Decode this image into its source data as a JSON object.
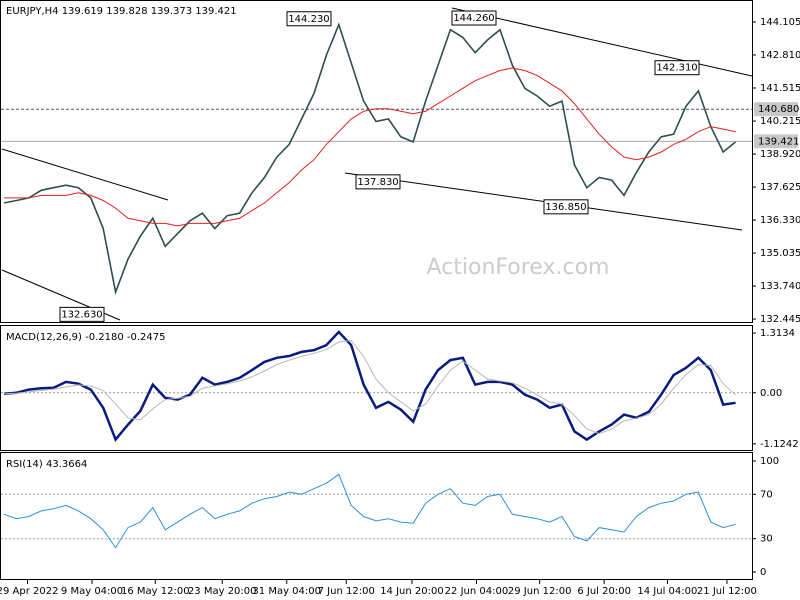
{
  "chart_data": [
    {
      "type": "line",
      "title": "EURJPY,H4  139.619 139.828 139.373 139.421",
      "watermark": "ActionForex.com",
      "x": [
        0,
        1,
        2,
        3,
        4,
        5,
        6,
        7,
        8,
        9,
        10,
        11,
        12,
        13,
        14,
        15,
        16,
        17,
        18,
        19,
        20,
        21,
        22,
        23,
        24,
        25,
        26,
        27,
        28,
        29,
        30,
        31,
        32,
        33,
        34,
        35,
        36,
        37,
        38,
        39,
        40,
        41,
        42,
        43,
        44,
        45,
        46,
        47,
        48,
        49,
        50,
        51,
        52,
        53,
        54,
        55,
        56,
        57,
        58,
        59
      ],
      "xlim": [
        0,
        60
      ],
      "ylim": [
        132.33,
        144.81
      ],
      "grid": false,
      "yticks": [
        144.105,
        {
          "value": 142.81,
          "label": "142.810"
        },
        141.515,
        140.215,
        {
          "value": 138.92,
          "label": "138.920"
        },
        137.625,
        {
          "value": 136.33,
          "label": "136.330"
        },
        135.035,
        {
          "value": 133.74,
          "label": "133.740"
        },
        132.445
      ],
      "series": [
        {
          "name": "EURJPY",
          "color": "#2f4f4f",
          "values": [
            137.0,
            137.1,
            137.2,
            137.5,
            137.6,
            137.7,
            137.6,
            137.2,
            136.0,
            133.5,
            134.8,
            135.7,
            136.4,
            135.3,
            135.8,
            136.3,
            136.6,
            136.0,
            136.5,
            136.6,
            137.4,
            138.0,
            138.8,
            139.3,
            140.3,
            141.3,
            142.8,
            144.0,
            142.5,
            141.0,
            140.2,
            140.3,
            139.6,
            139.4,
            141.0,
            142.4,
            143.8,
            143.5,
            142.9,
            143.4,
            143.8,
            142.4,
            141.5,
            141.2,
            140.8,
            141.0,
            138.5,
            137.6,
            138.0,
            137.9,
            137.3,
            138.2,
            139.0,
            139.6,
            139.7,
            140.8,
            141.4,
            140.0,
            139.0,
            139.4
          ]
        },
        {
          "color": "#e02020",
          "values": [
            137.2,
            137.2,
            137.2,
            137.3,
            137.3,
            137.3,
            137.4,
            137.3,
            137.1,
            136.8,
            136.4,
            136.3,
            136.2,
            136.2,
            136.1,
            136.2,
            136.2,
            136.2,
            136.3,
            136.4,
            136.7,
            137.0,
            137.4,
            137.8,
            138.3,
            138.7,
            139.3,
            139.8,
            140.3,
            140.6,
            140.7,
            140.7,
            140.6,
            140.5,
            140.6,
            140.9,
            141.2,
            141.5,
            141.8,
            142.0,
            142.2,
            142.3,
            142.2,
            142.0,
            141.7,
            141.4,
            140.9,
            140.3,
            139.7,
            139.2,
            138.8,
            138.7,
            138.8,
            139.0,
            139.3,
            139.5,
            139.8,
            140.0,
            139.9,
            139.8
          ]
        }
      ],
      "annotations": [
        {
          "value": 144.23,
          "label": "144.230"
        },
        {
          "value": 144.26,
          "label": "144.260"
        },
        {
          "value": 142.31,
          "label": "142.310"
        },
        {
          "value": 137.83,
          "label": "137.830"
        },
        {
          "value": 136.85,
          "label": "136.850"
        },
        {
          "value": 132.63,
          "label": "132.630"
        }
      ],
      "level": {
        "value": 140.68,
        "label": "140.680"
      },
      "price_line": {
        "value": 139.421,
        "label": "139.421"
      }
    },
    {
      "type": "line",
      "title": "MACD(12,26,9) -0.2180 -0.2475",
      "x": [
        0,
        1,
        2,
        3,
        4,
        5,
        6,
        7,
        8,
        9,
        10,
        11,
        12,
        13,
        14,
        15,
        16,
        17,
        18,
        19,
        20,
        21,
        22,
        23,
        24,
        25,
        26,
        27,
        28,
        29,
        30,
        31,
        32,
        33,
        34,
        35,
        36,
        37,
        38,
        39,
        40,
        41,
        42,
        43,
        44,
        45,
        46,
        47,
        48,
        49,
        50,
        51,
        52,
        53,
        54,
        55,
        56,
        57,
        58,
        59
      ],
      "xlim": [
        0,
        60
      ],
      "ylim": [
        -1.26,
        1.47
      ],
      "grid": true,
      "yticks": [
        1.3134,
        {
          "value": 0,
          "label": "0.00"
        },
        -1.1242
      ],
      "series": [
        {
          "color": "#0b1a7e",
          "values": [
            -0.02,
            0,
            0.07,
            0.1,
            0.11,
            0.24,
            0.2,
            0.07,
            -0.33,
            -1.03,
            -0.7,
            -0.4,
            0.18,
            -0.11,
            -0.15,
            -0.04,
            0.33,
            0.18,
            0.24,
            0.33,
            0.5,
            0.68,
            0.77,
            0.81,
            0.9,
            0.94,
            1.05,
            1.34,
            1.05,
            0.18,
            -0.33,
            -0.2,
            -0.37,
            -0.64,
            0.07,
            0.5,
            0.72,
            0.77,
            0.18,
            0.24,
            0.24,
            0.18,
            -0.04,
            -0.15,
            -0.33,
            -0.26,
            -0.85,
            -1.03,
            -0.85,
            -0.7,
            -0.48,
            -0.55,
            -0.42,
            -0.04,
            0.39,
            0.55,
            0.77,
            0.5,
            -0.26,
            -0.22
          ]
        },
        {
          "color": "#b8b8b8",
          "values": [
            -0.02,
            -0.01,
            0.02,
            0.05,
            0.08,
            0.13,
            0.17,
            0.15,
            0.05,
            -0.25,
            -0.55,
            -0.6,
            -0.35,
            -0.15,
            -0.12,
            -0.08,
            0.1,
            0.15,
            0.2,
            0.26,
            0.35,
            0.48,
            0.62,
            0.72,
            0.8,
            0.87,
            0.95,
            1.12,
            1.15,
            0.8,
            0.3,
            0,
            -0.2,
            -0.4,
            -0.25,
            0.15,
            0.5,
            0.7,
            0.5,
            0.3,
            0.26,
            0.22,
            0.1,
            -0.05,
            -0.2,
            -0.25,
            -0.5,
            -0.8,
            -0.9,
            -0.8,
            -0.62,
            -0.56,
            -0.48,
            -0.25,
            0.1,
            0.4,
            0.62,
            0.6,
            0.2,
            -0.05
          ]
        }
      ]
    },
    {
      "type": "line",
      "title": "RSI(14) 43.3664",
      "x": [
        0,
        1,
        2,
        3,
        4,
        5,
        6,
        7,
        8,
        9,
        10,
        11,
        12,
        13,
        14,
        15,
        16,
        17,
        18,
        19,
        20,
        21,
        22,
        23,
        24,
        25,
        26,
        27,
        28,
        29,
        30,
        31,
        32,
        33,
        34,
        35,
        36,
        37,
        38,
        39,
        40,
        41,
        42,
        43,
        44,
        45,
        46,
        47,
        48,
        49,
        50,
        51,
        52,
        53,
        54,
        55,
        56,
        57,
        58,
        59
      ],
      "xlim": [
        0,
        60
      ],
      "ylim": [
        -7.2,
        107.2
      ],
      "grid": true,
      "yticks": [
        100,
        70,
        30,
        0
      ],
      "xticks": [
        {
          "value": 1.9,
          "label": "29 Apr 2022"
        },
        {
          "value": 7.1,
          "label": "9 May 04:00"
        },
        {
          "value": 12.2,
          "label": "16 May 12:00"
        },
        {
          "value": 17.6,
          "label": "23 May 20:00"
        },
        {
          "value": 22.8,
          "label": "31 May 04:00"
        },
        {
          "value": 27.6,
          "label": "7 Jun 12:00"
        },
        {
          "value": 32.9,
          "label": "14 Jun 20:00"
        },
        {
          "value": 38.1,
          "label": "22 Jun 04:00"
        },
        {
          "value": 43.2,
          "label": "29 Jun 12:00"
        },
        {
          "value": 48.4,
          "label": "6 Jul 20:00"
        },
        {
          "value": 53.5,
          "label": "14 Jul 04:00"
        },
        {
          "value": 58.3,
          "label": "21 Jul 12:00"
        }
      ],
      "series": [
        {
          "color": "#2f8fdc",
          "values": [
            52,
            48,
            50,
            55,
            57,
            60,
            55,
            48,
            38,
            22,
            40,
            45,
            58,
            38,
            45,
            52,
            58,
            48,
            52,
            55,
            62,
            66,
            68,
            72,
            70,
            75,
            80,
            88,
            60,
            50,
            46,
            48,
            45,
            44,
            62,
            70,
            75,
            62,
            60,
            68,
            70,
            52,
            50,
            48,
            45,
            50,
            32,
            28,
            40,
            38,
            36,
            50,
            58,
            62,
            64,
            70,
            72,
            45,
            40,
            43
          ]
        }
      ]
    }
  ]
}
